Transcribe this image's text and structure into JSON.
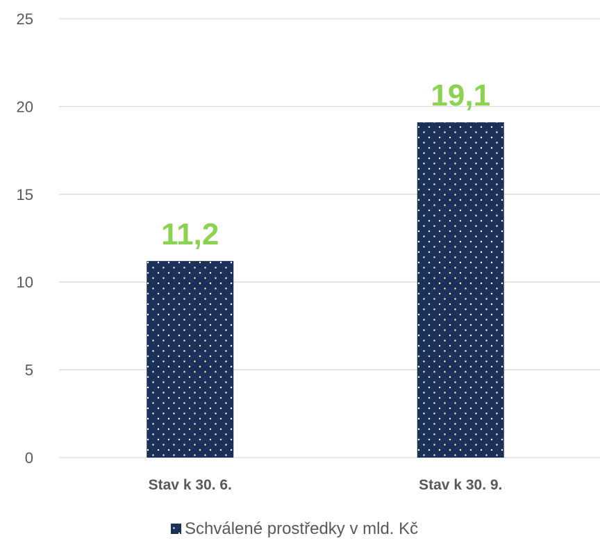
{
  "chart_data": {
    "type": "bar",
    "categories": [
      "Stav k 30. 6.",
      "Stav k 30. 9."
    ],
    "series": [
      {
        "name": "Schválené prostředky v mld. Kč",
        "values": [
          11.2,
          19.1
        ]
      }
    ],
    "data_labels": [
      "11,2",
      "19,1"
    ],
    "y_ticks": [
      "0",
      "5",
      "10",
      "15",
      "20",
      "25"
    ],
    "ylim": [
      0,
      25
    ],
    "grid": true,
    "legend": "bottom",
    "colors": {
      "bar": "#1b3157",
      "bar_pattern": "dotted",
      "data_label": "#8cd252",
      "gridline": "#d9d9d9",
      "text": "#595959"
    }
  }
}
